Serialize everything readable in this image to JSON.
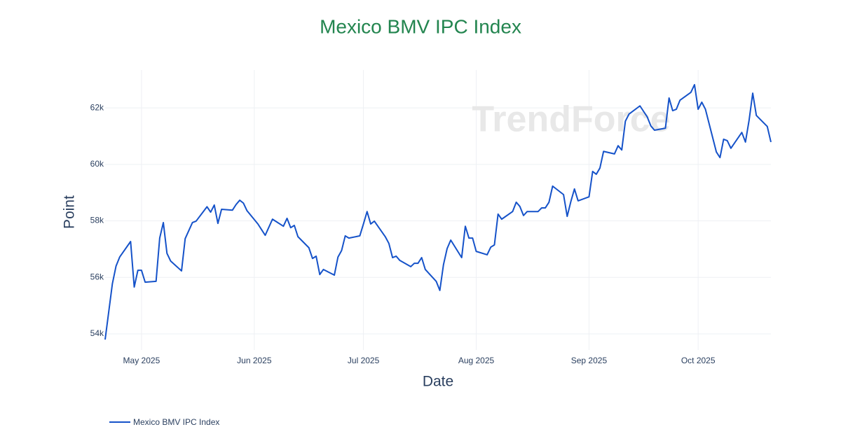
{
  "chart_data": {
    "type": "line",
    "title": "Mexico BMV IPC Index",
    "title_color": "#23854f",
    "watermark": "TrendForce",
    "x_label": "Date",
    "y_label": "Point",
    "grid": true,
    "legend_position": "bottom-left",
    "xlim": [
      "2025-04-21",
      "2025-10-21"
    ],
    "xticks": [
      {
        "value": "2025-05-01",
        "label": "May 2025"
      },
      {
        "value": "2025-06-01",
        "label": "Jun 2025"
      },
      {
        "value": "2025-07-01",
        "label": "Jul 2025"
      },
      {
        "value": "2025-08-01",
        "label": "Aug 2025"
      },
      {
        "value": "2025-09-01",
        "label": "Sep 2025"
      },
      {
        "value": "2025-10-01",
        "label": "Oct 2025"
      }
    ],
    "ylim": [
      53430,
      63340
    ],
    "yticks": [
      {
        "value": 54000,
        "label": "54k"
      },
      {
        "value": 56000,
        "label": "56k"
      },
      {
        "value": 58000,
        "label": "58k"
      },
      {
        "value": 60000,
        "label": "60k"
      },
      {
        "value": 62000,
        "label": "62k"
      }
    ],
    "x": [
      "2025-04-21",
      "2025-04-23",
      "2025-04-24",
      "2025-04-25",
      "2025-04-28",
      "2025-04-29",
      "2025-04-30",
      "2025-05-01",
      "2025-05-02",
      "2025-05-05",
      "2025-05-06",
      "2025-05-07",
      "2025-05-08",
      "2025-05-09",
      "2025-05-12",
      "2025-05-13",
      "2025-05-15",
      "2025-05-16",
      "2025-05-19",
      "2025-05-20",
      "2025-05-21",
      "2025-05-22",
      "2025-05-23",
      "2025-05-26",
      "2025-05-27",
      "2025-05-28",
      "2025-05-29",
      "2025-05-30",
      "2025-06-02",
      "2025-06-03",
      "2025-06-04",
      "2025-06-06",
      "2025-06-09",
      "2025-06-10",
      "2025-06-11",
      "2025-06-12",
      "2025-06-13",
      "2025-06-16",
      "2025-06-17",
      "2025-06-18",
      "2025-06-19",
      "2025-06-20",
      "2025-06-23",
      "2025-06-24",
      "2025-06-25",
      "2025-06-26",
      "2025-06-27",
      "2025-06-30",
      "2025-07-01",
      "2025-07-02",
      "2025-07-03",
      "2025-07-04",
      "2025-07-07",
      "2025-07-08",
      "2025-07-09",
      "2025-07-10",
      "2025-07-11",
      "2025-07-14",
      "2025-07-15",
      "2025-07-16",
      "2025-07-17",
      "2025-07-18",
      "2025-07-21",
      "2025-07-22",
      "2025-07-23",
      "2025-07-24",
      "2025-07-25",
      "2025-07-28",
      "2025-07-29",
      "2025-07-30",
      "2025-07-31",
      "2025-08-01",
      "2025-08-04",
      "2025-08-05",
      "2025-08-06",
      "2025-08-07",
      "2025-08-08",
      "2025-08-11",
      "2025-08-12",
      "2025-08-13",
      "2025-08-14",
      "2025-08-15",
      "2025-08-18",
      "2025-08-19",
      "2025-08-20",
      "2025-08-21",
      "2025-08-22",
      "2025-08-25",
      "2025-08-26",
      "2025-08-27",
      "2025-08-28",
      "2025-08-29",
      "2025-09-01",
      "2025-09-02",
      "2025-09-03",
      "2025-09-04",
      "2025-09-05",
      "2025-09-08",
      "2025-09-09",
      "2025-09-10",
      "2025-09-11",
      "2025-09-12",
      "2025-09-15",
      "2025-09-17",
      "2025-09-18",
      "2025-09-19",
      "2025-09-22",
      "2025-09-23",
      "2025-09-24",
      "2025-09-25",
      "2025-09-26",
      "2025-09-29",
      "2025-09-30",
      "2025-10-01",
      "2025-10-02",
      "2025-10-03",
      "2025-10-06",
      "2025-10-07",
      "2025-10-08",
      "2025-10-09",
      "2025-10-10",
      "2025-10-13",
      "2025-10-14",
      "2025-10-15",
      "2025-10-16",
      "2025-10-17",
      "2025-10-20",
      "2025-10-21"
    ],
    "series": [
      {
        "name": "Mexico BMV IPC Index",
        "color": "#1552c9",
        "values": [
          53800,
          55780,
          56400,
          56720,
          57270,
          55660,
          56250,
          56250,
          55830,
          55860,
          57390,
          57940,
          56850,
          56580,
          56230,
          57370,
          57940,
          57990,
          58500,
          58310,
          58560,
          57910,
          58410,
          58380,
          58580,
          58730,
          58630,
          58360,
          57890,
          57690,
          57490,
          58060,
          57810,
          58090,
          57760,
          57840,
          57440,
          57050,
          56670,
          56750,
          56100,
          56280,
          56080,
          56720,
          56950,
          57470,
          57390,
          57470,
          57890,
          58330,
          57890,
          57990,
          57440,
          57200,
          56700,
          56750,
          56600,
          56380,
          56500,
          56500,
          56700,
          56280,
          55860,
          55540,
          56450,
          57020,
          57320,
          56700,
          57810,
          57390,
          57390,
          56920,
          56800,
          57070,
          57150,
          58240,
          58060,
          58330,
          58660,
          58510,
          58190,
          58330,
          58330,
          58460,
          58460,
          58660,
          59230,
          58930,
          58160,
          58680,
          59130,
          58710,
          58850,
          59750,
          59650,
          59870,
          60460,
          60370,
          60660,
          60510,
          61530,
          61780,
          62070,
          61680,
          61360,
          61210,
          61280,
          62350,
          61900,
          61950,
          62270,
          62550,
          62820,
          61950,
          62200,
          61950,
          60440,
          60240,
          60890,
          60840,
          60570,
          61130,
          60790,
          61560,
          62520,
          61730,
          61340,
          60790
        ]
      }
    ]
  }
}
